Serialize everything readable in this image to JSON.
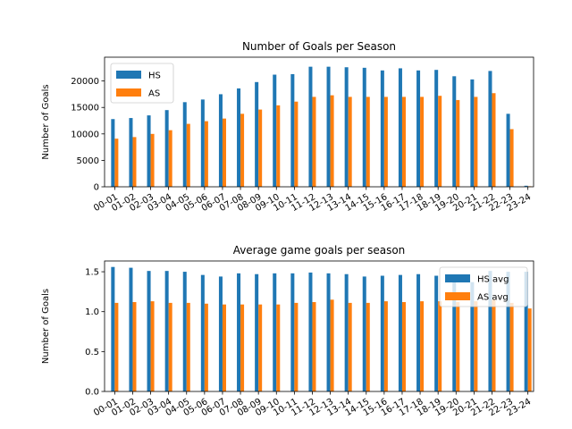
{
  "chart_data": [
    {
      "type": "bar",
      "title": "Number of Goals per Season",
      "xlabel": "",
      "ylabel": "Number of Goals",
      "ylim": [
        0,
        24500
      ],
      "yticks": [
        0,
        5000,
        10000,
        15000,
        20000
      ],
      "legend_position": "upper-left",
      "grid": false,
      "categories": [
        "00-01",
        "01-02",
        "02-03",
        "03-04",
        "04-05",
        "05-06",
        "06-07",
        "07-08",
        "08-09",
        "09-10",
        "10-11",
        "11-12",
        "12-13",
        "13-14",
        "14-15",
        "15-16",
        "16-17",
        "17-18",
        "18-19",
        "19-20",
        "20-21",
        "21-22",
        "22-23",
        "23-24"
      ],
      "series": [
        {
          "name": "HS",
          "color": "#1f77b4",
          "values": [
            12800,
            13000,
            13500,
            14500,
            16000,
            16500,
            17500,
            18600,
            19800,
            21200,
            21300,
            22700,
            22700,
            22600,
            22500,
            22000,
            22400,
            22000,
            22100,
            20900,
            20300,
            21900,
            13800,
            200
          ]
        },
        {
          "name": "AS",
          "color": "#ff7f0e",
          "values": [
            9100,
            9400,
            10000,
            10700,
            11900,
            12400,
            12900,
            13800,
            14600,
            15400,
            16100,
            17000,
            17300,
            17000,
            17000,
            17000,
            17000,
            17000,
            17200,
            16400,
            17000,
            17700,
            10900,
            100
          ]
        }
      ]
    },
    {
      "type": "bar",
      "title": "Average game goals per season",
      "xlabel": "",
      "ylabel": "Number of Goals",
      "ylim": [
        0,
        1.635
      ],
      "yticks": [
        0.0,
        0.5,
        1.0,
        1.5
      ],
      "legend_position": "upper-right",
      "grid": false,
      "categories": [
        "00-01",
        "01-02",
        "02-03",
        "03-04",
        "04-05",
        "05-06",
        "06-07",
        "07-08",
        "08-09",
        "09-10",
        "10-11",
        "11-12",
        "12-13",
        "13-14",
        "14-15",
        "15-16",
        "16-17",
        "17-18",
        "18-19",
        "19-20",
        "20-21",
        "21-22",
        "22-23",
        "23-24"
      ],
      "series": [
        {
          "name": "HS avg",
          "color": "#1f77b4",
          "values": [
            1.56,
            1.55,
            1.51,
            1.51,
            1.5,
            1.46,
            1.44,
            1.48,
            1.47,
            1.48,
            1.48,
            1.49,
            1.48,
            1.47,
            1.44,
            1.45,
            1.46,
            1.47,
            1.45,
            1.37,
            1.37,
            1.51,
            1.5,
            1.5
          ]
        },
        {
          "name": "AS avg",
          "color": "#ff7f0e",
          "values": [
            1.11,
            1.12,
            1.13,
            1.11,
            1.11,
            1.1,
            1.09,
            1.09,
            1.09,
            1.09,
            1.11,
            1.12,
            1.15,
            1.11,
            1.11,
            1.13,
            1.12,
            1.13,
            1.13,
            1.12,
            1.13,
            1.15,
            1.11,
            1.04
          ]
        }
      ]
    }
  ]
}
